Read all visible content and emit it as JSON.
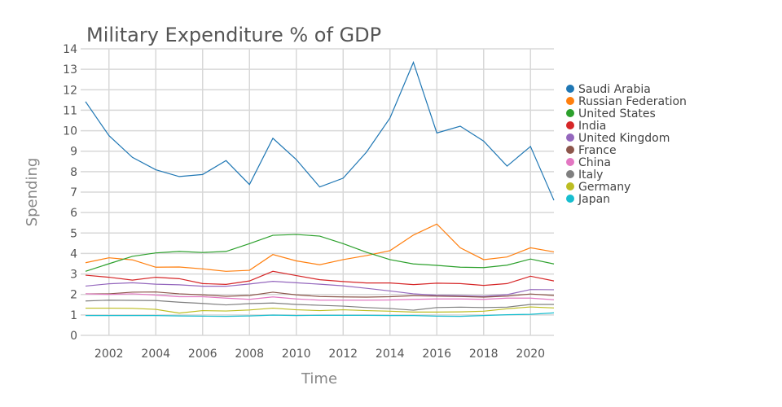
{
  "chart_data": {
    "type": "line",
    "title": "Military Expenditure % of GDP",
    "xlabel": "Time",
    "ylabel": "Spending",
    "x": [
      2001,
      2002,
      2003,
      2004,
      2005,
      2006,
      2007,
      2008,
      2009,
      2010,
      2011,
      2012,
      2013,
      2014,
      2015,
      2016,
      2017,
      2018,
      2019,
      2020,
      2021
    ],
    "xlim": [
      2001,
      2021
    ],
    "ylim": [
      0,
      14
    ],
    "x_ticks": [
      2002,
      2004,
      2006,
      2008,
      2010,
      2012,
      2014,
      2016,
      2018,
      2020
    ],
    "y_ticks": [
      0,
      1,
      2,
      3,
      4,
      5,
      6,
      7,
      8,
      9,
      10,
      11,
      12,
      13,
      14
    ],
    "grid": true,
    "legend_position": "right",
    "series": [
      {
        "name": "Saudi Arabia",
        "color": "#1f77b4",
        "values": [
          11.42,
          9.76,
          8.7,
          8.09,
          7.76,
          7.86,
          8.54,
          7.37,
          9.63,
          8.59,
          7.25,
          7.68,
          8.96,
          10.62,
          13.34,
          9.89,
          10.22,
          9.49,
          8.27,
          9.23,
          6.6
        ]
      },
      {
        "name": "Russian Federation",
        "color": "#ff7f0e",
        "values": [
          3.55,
          3.79,
          3.69,
          3.33,
          3.34,
          3.25,
          3.13,
          3.18,
          3.95,
          3.64,
          3.45,
          3.7,
          3.9,
          4.14,
          4.9,
          5.44,
          4.28,
          3.7,
          3.83,
          4.28,
          4.08
        ]
      },
      {
        "name": "United States",
        "color": "#2ca02c",
        "values": [
          3.13,
          3.5,
          3.86,
          4.03,
          4.1,
          4.05,
          4.1,
          4.48,
          4.89,
          4.93,
          4.85,
          4.48,
          4.06,
          3.7,
          3.49,
          3.42,
          3.33,
          3.31,
          3.43,
          3.73,
          3.49
        ]
      },
      {
        "name": "India",
        "color": "#d62728",
        "values": [
          2.94,
          2.84,
          2.7,
          2.84,
          2.77,
          2.53,
          2.49,
          2.66,
          3.13,
          2.92,
          2.72,
          2.63,
          2.56,
          2.56,
          2.48,
          2.55,
          2.53,
          2.44,
          2.53,
          2.89,
          2.66
        ]
      },
      {
        "name": "United Kingdom",
        "color": "#9467bd",
        "values": [
          2.41,
          2.52,
          2.57,
          2.5,
          2.47,
          2.4,
          2.4,
          2.51,
          2.64,
          2.57,
          2.5,
          2.42,
          2.3,
          2.17,
          2.03,
          1.96,
          1.94,
          1.91,
          1.99,
          2.24,
          2.23
        ]
      },
      {
        "name": "France",
        "color": "#8c564b",
        "values": [
          2.03,
          2.03,
          2.11,
          2.12,
          2.03,
          1.98,
          1.91,
          1.95,
          2.11,
          1.98,
          1.9,
          1.88,
          1.87,
          1.89,
          1.94,
          1.92,
          1.9,
          1.87,
          1.92,
          2.02,
          1.95
        ]
      },
      {
        "name": "China",
        "color": "#e377c2",
        "values": [
          2.03,
          2.0,
          2.03,
          1.97,
          1.89,
          1.89,
          1.82,
          1.76,
          1.88,
          1.78,
          1.72,
          1.72,
          1.72,
          1.73,
          1.76,
          1.78,
          1.78,
          1.76,
          1.82,
          1.82,
          1.74
        ]
      },
      {
        "name": "Italy",
        "color": "#7f7f7f",
        "values": [
          1.68,
          1.72,
          1.71,
          1.7,
          1.62,
          1.56,
          1.49,
          1.55,
          1.58,
          1.51,
          1.47,
          1.43,
          1.36,
          1.31,
          1.23,
          1.36,
          1.38,
          1.36,
          1.38,
          1.51,
          1.51
        ]
      },
      {
        "name": "Germany",
        "color": "#bcbd22",
        "values": [
          1.33,
          1.33,
          1.32,
          1.27,
          1.09,
          1.21,
          1.19,
          1.24,
          1.33,
          1.25,
          1.21,
          1.25,
          1.21,
          1.18,
          1.14,
          1.14,
          1.15,
          1.18,
          1.3,
          1.39,
          1.34
        ]
      },
      {
        "name": "Japan",
        "color": "#17becf",
        "values": [
          0.97,
          0.97,
          0.97,
          0.97,
          0.95,
          0.94,
          0.93,
          0.95,
          0.99,
          0.97,
          0.98,
          0.98,
          0.98,
          0.97,
          0.97,
          0.94,
          0.93,
          0.97,
          1.01,
          1.03,
          1.1
        ]
      }
    ]
  }
}
